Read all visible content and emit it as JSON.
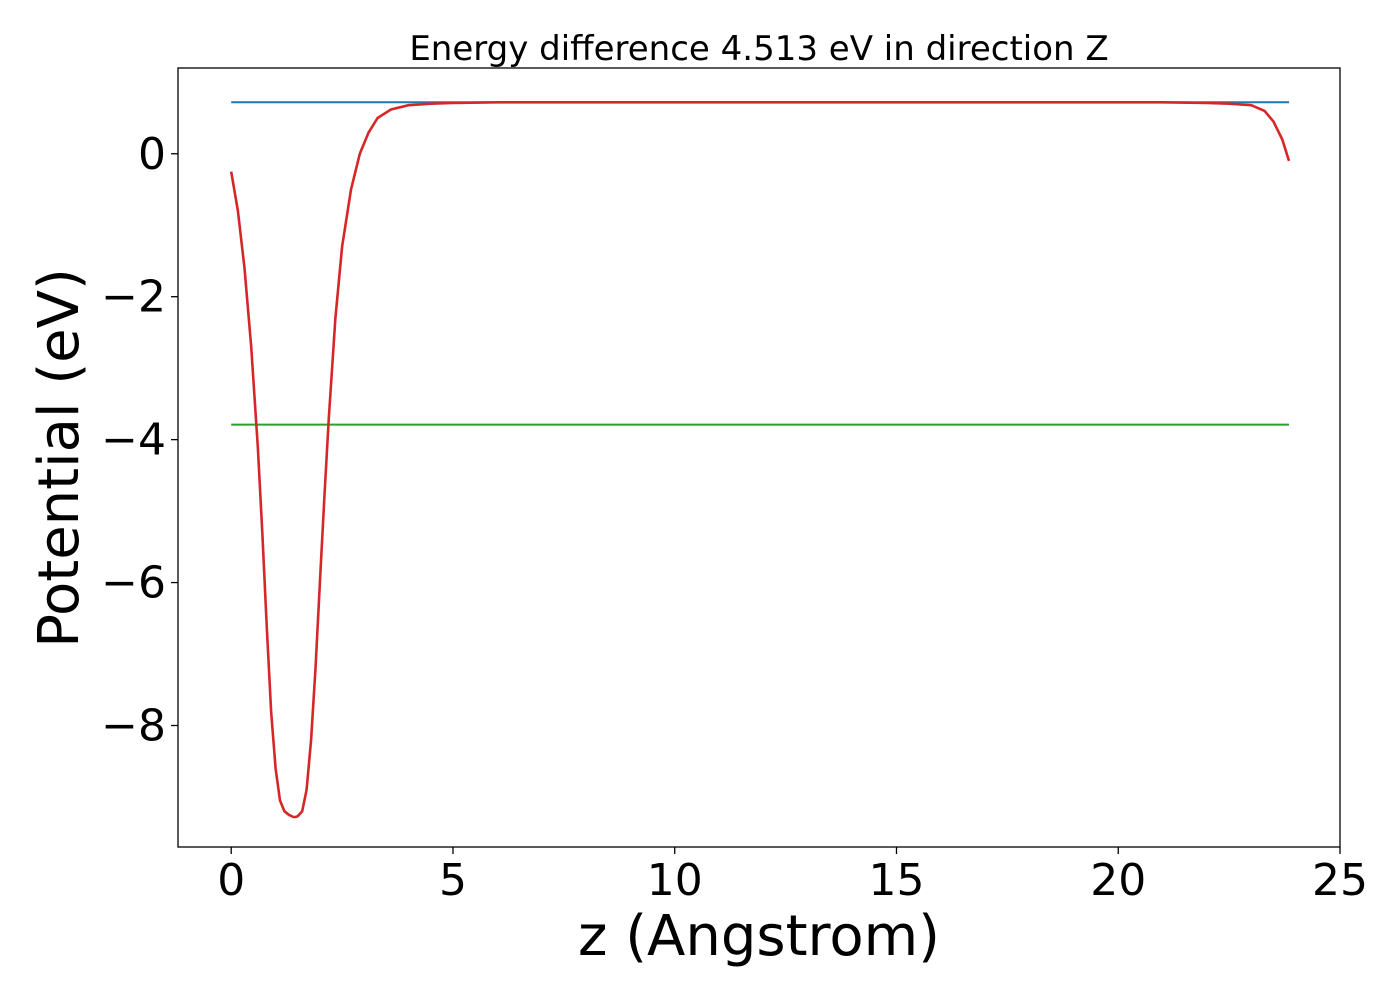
{
  "chart_data": {
    "type": "line",
    "title": "Energy difference 4.513 eV in direction Z",
    "xlabel": "z (Angstrom)",
    "ylabel": "Potential (eV)",
    "xlim": [
      -1.2,
      25.0
    ],
    "ylim": [
      -9.7,
      1.2
    ],
    "grid": false,
    "x_ticks": [
      0,
      5,
      10,
      15,
      20,
      25
    ],
    "x_tick_labels": [
      "0",
      "5",
      "10",
      "15",
      "20",
      "25"
    ],
    "y_ticks": [
      0,
      -2,
      -4,
      -6,
      -8
    ],
    "y_tick_labels": [
      "0",
      "−2",
      "−4",
      "−6",
      "−8"
    ],
    "series": [
      {
        "color": "#d62728",
        "x": [
          0,
          0.15,
          0.3,
          0.45,
          0.6,
          0.7,
          0.8,
          0.9,
          1.0,
          1.1,
          1.2,
          1.3,
          1.4,
          1.45,
          1.5,
          1.6,
          1.7,
          1.8,
          1.9,
          2.0,
          2.1,
          2.2,
          2.35,
          2.5,
          2.7,
          2.9,
          3.1,
          3.3,
          3.6,
          4.0,
          4.5,
          5.0,
          6.0,
          8.0,
          10.0,
          12.0,
          14.0,
          16.0,
          18.0,
          20.0,
          21.0,
          22.0,
          22.5,
          23.0,
          23.3,
          23.5,
          23.7,
          23.85
        ],
        "y": [
          -0.25,
          -0.8,
          -1.6,
          -2.7,
          -4.1,
          -5.3,
          -6.6,
          -7.8,
          -8.6,
          -9.05,
          -9.2,
          -9.25,
          -9.28,
          -9.28,
          -9.27,
          -9.2,
          -8.9,
          -8.2,
          -7.2,
          -6.0,
          -4.8,
          -3.7,
          -2.3,
          -1.3,
          -0.5,
          0.0,
          0.3,
          0.5,
          0.62,
          0.68,
          0.7,
          0.71,
          0.72,
          0.72,
          0.72,
          0.72,
          0.72,
          0.72,
          0.72,
          0.72,
          0.72,
          0.71,
          0.7,
          0.68,
          0.6,
          0.45,
          0.2,
          -0.1
        ]
      },
      {
        "color": "#1f77b4",
        "x": [
          0,
          23.85
        ],
        "y": [
          0.72,
          0.72
        ]
      },
      {
        "color": "#2ca02c",
        "x": [
          0,
          23.85
        ],
        "y": [
          -3.79,
          -3.79
        ]
      }
    ]
  }
}
